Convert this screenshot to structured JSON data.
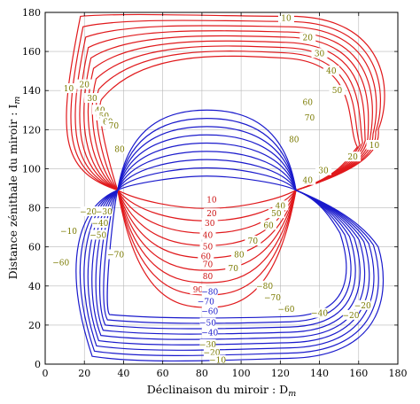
{
  "chart_data": {
    "type": "contour",
    "title": "",
    "xlabel": "Déclinaison du miroir : D",
    "xlabel_sub": "m",
    "ylabel": "Distance zénithale du miroir : I",
    "ylabel_sub": "m",
    "xlim": [
      0,
      180
    ],
    "ylim": [
      0,
      180
    ],
    "xticks": [
      0,
      20,
      40,
      60,
      80,
      100,
      120,
      140,
      160,
      180
    ],
    "yticks": [
      0,
      20,
      40,
      60,
      80,
      100,
      120,
      140,
      160,
      180
    ],
    "grid": true,
    "singular_points": [
      [
        37,
        89
      ],
      [
        128,
        89
      ]
    ],
    "colors": {
      "positive": "#e0191c",
      "negative": "#1a1acc",
      "label_red": "#cc1111",
      "label_blue": "#1a1acc",
      "label_olive": "#7a7a00",
      "grid": "#b8b8b8"
    },
    "levels": [
      10,
      20,
      30,
      40,
      50,
      60,
      70,
      80,
      90
    ],
    "line_labels": [
      {
        "text": "10",
        "x": 123,
        "y": 177,
        "color": "olive"
      },
      {
        "text": "20",
        "x": 134,
        "y": 167,
        "color": "olive"
      },
      {
        "text": "30",
        "x": 140,
        "y": 159,
        "color": "olive"
      },
      {
        "text": "40",
        "x": 146,
        "y": 150,
        "color": "olive"
      },
      {
        "text": "50",
        "x": 149,
        "y": 140,
        "color": "olive"
      },
      {
        "text": "60",
        "x": 134,
        "y": 134,
        "color": "olive"
      },
      {
        "text": "70",
        "x": 135,
        "y": 126,
        "color": "olive"
      },
      {
        "text": "80",
        "x": 127,
        "y": 115,
        "color": "olive"
      },
      {
        "text": "10",
        "x": 12,
        "y": 141,
        "color": "olive"
      },
      {
        "text": "20",
        "x": 20,
        "y": 143,
        "color": "olive"
      },
      {
        "text": "30",
        "x": 24,
        "y": 136,
        "color": "olive"
      },
      {
        "text": "40",
        "x": 28,
        "y": 130,
        "color": "olive"
      },
      {
        "text": "50",
        "x": 30,
        "y": 127,
        "color": "olive"
      },
      {
        "text": "60",
        "x": 32,
        "y": 124,
        "color": "olive"
      },
      {
        "text": "70",
        "x": 35,
        "y": 122,
        "color": "olive"
      },
      {
        "text": "80",
        "x": 38,
        "y": 110,
        "color": "olive"
      },
      {
        "text": "10",
        "x": 168,
        "y": 112,
        "color": "olive"
      },
      {
        "text": "20",
        "x": 157,
        "y": 106,
        "color": "olive"
      },
      {
        "text": "30",
        "x": 142,
        "y": 99,
        "color": "olive"
      },
      {
        "text": "40",
        "x": 134,
        "y": 94,
        "color": "olive"
      },
      {
        "text": "10",
        "x": 85,
        "y": 84,
        "color": "red"
      },
      {
        "text": "20",
        "x": 85,
        "y": 77,
        "color": "red"
      },
      {
        "text": "30",
        "x": 84,
        "y": 72,
        "color": "red"
      },
      {
        "text": "40",
        "x": 83,
        "y": 66,
        "color": "red"
      },
      {
        "text": "50",
        "x": 83,
        "y": 60,
        "color": "red"
      },
      {
        "text": "60",
        "x": 82,
        "y": 55,
        "color": "red"
      },
      {
        "text": "70",
        "x": 83,
        "y": 51,
        "color": "red"
      },
      {
        "text": "80",
        "x": 83,
        "y": 45,
        "color": "red"
      },
      {
        "text": "90",
        "x": 78,
        "y": 38,
        "color": "red"
      },
      {
        "text": "40",
        "x": 120,
        "y": 81,
        "color": "olive"
      },
      {
        "text": "50",
        "x": 118,
        "y": 77,
        "color": "olive"
      },
      {
        "text": "60",
        "x": 114,
        "y": 71,
        "color": "olive"
      },
      {
        "text": "70",
        "x": 106,
        "y": 63,
        "color": "olive"
      },
      {
        "text": "80",
        "x": 99,
        "y": 56,
        "color": "olive"
      },
      {
        "text": "70",
        "x": 96,
        "y": 49,
        "color": "olive"
      },
      {
        "text": "−10",
        "x": 12,
        "y": 68,
        "color": "olive"
      },
      {
        "text": "−20",
        "x": 22,
        "y": 78,
        "color": "olive"
      },
      {
        "text": "−30",
        "x": 30,
        "y": 78,
        "color": "olive"
      },
      {
        "text": "−40",
        "x": 28,
        "y": 72,
        "color": "olive"
      },
      {
        "text": "−50",
        "x": 27,
        "y": 66,
        "color": "olive"
      },
      {
        "text": "−60",
        "x": 8,
        "y": 52,
        "color": "olive"
      },
      {
        "text": "−70",
        "x": 36,
        "y": 56,
        "color": "olive"
      },
      {
        "text": "−80",
        "x": 84,
        "y": 37,
        "color": "blue"
      },
      {
        "text": "−70",
        "x": 82,
        "y": 32,
        "color": "blue"
      },
      {
        "text": "−60",
        "x": 84,
        "y": 27,
        "color": "blue"
      },
      {
        "text": "−50",
        "x": 83,
        "y": 21,
        "color": "blue"
      },
      {
        "text": "−40",
        "x": 84,
        "y": 16,
        "color": "blue"
      },
      {
        "text": "−30",
        "x": 83,
        "y": 10,
        "color": "olive"
      },
      {
        "text": "−20",
        "x": 85,
        "y": 6,
        "color": "olive"
      },
      {
        "text": "−10",
        "x": 88,
        "y": 2,
        "color": "olive"
      },
      {
        "text": "−80",
        "x": 112,
        "y": 40,
        "color": "olive"
      },
      {
        "text": "−70",
        "x": 116,
        "y": 34,
        "color": "olive"
      },
      {
        "text": "−60",
        "x": 123,
        "y": 28,
        "color": "olive"
      },
      {
        "text": "−40",
        "x": 140,
        "y": 26,
        "color": "olive"
      },
      {
        "text": "−20",
        "x": 156,
        "y": 25,
        "color": "olive"
      },
      {
        "text": "−20",
        "x": 162,
        "y": 30,
        "color": "olive"
      }
    ]
  }
}
